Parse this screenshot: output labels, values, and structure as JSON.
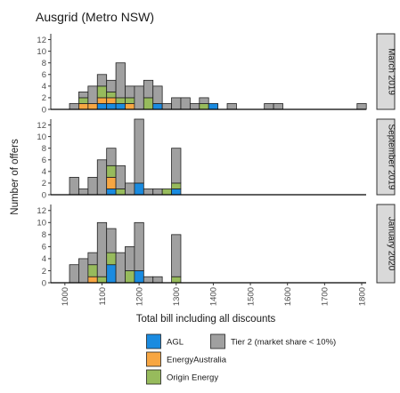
{
  "chart_data": {
    "type": "bar",
    "stacked": true,
    "title": "Ausgrid (Metro NSW)",
    "xlabel": "Total bill including all discounts",
    "ylabel": "Number of offers",
    "bin_width": 25,
    "xlim": [
      962,
      1812
    ],
    "ylim": [
      0,
      13
    ],
    "x_ticks": [
      1000,
      1100,
      1200,
      1300,
      1400,
      1500,
      1600,
      1700,
      1800
    ],
    "y_ticks": [
      0,
      2,
      4,
      6,
      8,
      10,
      12
    ],
    "series_names": [
      "AGL",
      "EnergyAustralia",
      "Origin Energy",
      "Tier 2 (market share < 10%)"
    ],
    "colors": {
      "AGL": "#1a8be0",
      "EnergyAustralia": "#f7a642",
      "Origin Energy": "#97bb5c",
      "Tier 2 (market share < 10%)": "#a0a0a0"
    },
    "legend": {
      "position": "bottom"
    },
    "panels": [
      {
        "label": "March 2019",
        "bins": [
          {
            "x": 1025,
            "AGL": 0,
            "EnergyAustralia": 0,
            "Origin Energy": 0,
            "Tier 2 (market share < 10%)": 1
          },
          {
            "x": 1050,
            "AGL": 0,
            "EnergyAustralia": 1,
            "Origin Energy": 1,
            "Tier 2 (market share < 10%)": 1
          },
          {
            "x": 1075,
            "AGL": 0,
            "EnergyAustralia": 1,
            "Origin Energy": 0,
            "Tier 2 (market share < 10%)": 3
          },
          {
            "x": 1100,
            "AGL": 1,
            "EnergyAustralia": 1,
            "Origin Energy": 2,
            "Tier 2 (market share < 10%)": 2
          },
          {
            "x": 1125,
            "AGL": 1,
            "EnergyAustralia": 1,
            "Origin Energy": 1,
            "Tier 2 (market share < 10%)": 2
          },
          {
            "x": 1150,
            "AGL": 1,
            "EnergyAustralia": 0,
            "Origin Energy": 1,
            "Tier 2 (market share < 10%)": 6
          },
          {
            "x": 1175,
            "AGL": 0,
            "EnergyAustralia": 1,
            "Origin Energy": 1,
            "Tier 2 (market share < 10%)": 2
          },
          {
            "x": 1200,
            "AGL": 0,
            "EnergyAustralia": 0,
            "Origin Energy": 0,
            "Tier 2 (market share < 10%)": 4
          },
          {
            "x": 1225,
            "AGL": 0,
            "EnergyAustralia": 0,
            "Origin Energy": 2,
            "Tier 2 (market share < 10%)": 3
          },
          {
            "x": 1250,
            "AGL": 1,
            "EnergyAustralia": 0,
            "Origin Energy": 0,
            "Tier 2 (market share < 10%)": 3
          },
          {
            "x": 1275,
            "AGL": 0,
            "EnergyAustralia": 0,
            "Origin Energy": 0,
            "Tier 2 (market share < 10%)": 1
          },
          {
            "x": 1300,
            "AGL": 0,
            "EnergyAustralia": 0,
            "Origin Energy": 0,
            "Tier 2 (market share < 10%)": 2
          },
          {
            "x": 1325,
            "AGL": 0,
            "EnergyAustralia": 0,
            "Origin Energy": 0,
            "Tier 2 (market share < 10%)": 2
          },
          {
            "x": 1350,
            "AGL": 0,
            "EnergyAustralia": 0,
            "Origin Energy": 0,
            "Tier 2 (market share < 10%)": 1
          },
          {
            "x": 1375,
            "AGL": 0,
            "EnergyAustralia": 0,
            "Origin Energy": 1,
            "Tier 2 (market share < 10%)": 1
          },
          {
            "x": 1400,
            "AGL": 1,
            "EnergyAustralia": 0,
            "Origin Energy": 0,
            "Tier 2 (market share < 10%)": 0
          },
          {
            "x": 1450,
            "AGL": 0,
            "EnergyAustralia": 0,
            "Origin Energy": 0,
            "Tier 2 (market share < 10%)": 1
          },
          {
            "x": 1550,
            "AGL": 0,
            "EnergyAustralia": 0,
            "Origin Energy": 0,
            "Tier 2 (market share < 10%)": 1
          },
          {
            "x": 1575,
            "AGL": 0,
            "EnergyAustralia": 0,
            "Origin Energy": 0,
            "Tier 2 (market share < 10%)": 1
          },
          {
            "x": 1800,
            "AGL": 0,
            "EnergyAustralia": 0,
            "Origin Energy": 0,
            "Tier 2 (market share < 10%)": 1
          }
        ]
      },
      {
        "label": "September 2019",
        "bins": [
          {
            "x": 1025,
            "AGL": 0,
            "EnergyAustralia": 0,
            "Origin Energy": 0,
            "Tier 2 (market share < 10%)": 3
          },
          {
            "x": 1050,
            "AGL": 0,
            "EnergyAustralia": 0,
            "Origin Energy": 0,
            "Tier 2 (market share < 10%)": 1
          },
          {
            "x": 1075,
            "AGL": 0,
            "EnergyAustralia": 0,
            "Origin Energy": 0,
            "Tier 2 (market share < 10%)": 3
          },
          {
            "x": 1100,
            "AGL": 0,
            "EnergyAustralia": 0,
            "Origin Energy": 0,
            "Tier 2 (market share < 10%)": 6
          },
          {
            "x": 1125,
            "AGL": 1,
            "EnergyAustralia": 2,
            "Origin Energy": 2,
            "Tier 2 (market share < 10%)": 3
          },
          {
            "x": 1150,
            "AGL": 0,
            "EnergyAustralia": 0,
            "Origin Energy": 1,
            "Tier 2 (market share < 10%)": 4
          },
          {
            "x": 1175,
            "AGL": 0,
            "EnergyAustralia": 0,
            "Origin Energy": 0,
            "Tier 2 (market share < 10%)": 2
          },
          {
            "x": 1200,
            "AGL": 2,
            "EnergyAustralia": 0,
            "Origin Energy": 0,
            "Tier 2 (market share < 10%)": 11
          },
          {
            "x": 1225,
            "AGL": 0,
            "EnergyAustralia": 0,
            "Origin Energy": 0,
            "Tier 2 (market share < 10%)": 1
          },
          {
            "x": 1250,
            "AGL": 0,
            "EnergyAustralia": 0,
            "Origin Energy": 0,
            "Tier 2 (market share < 10%)": 1
          },
          {
            "x": 1275,
            "AGL": 0,
            "EnergyAustralia": 0,
            "Origin Energy": 1,
            "Tier 2 (market share < 10%)": 0
          },
          {
            "x": 1300,
            "AGL": 1,
            "EnergyAustralia": 0,
            "Origin Energy": 1,
            "Tier 2 (market share < 10%)": 6
          }
        ]
      },
      {
        "label": "January 2020",
        "bins": [
          {
            "x": 1025,
            "AGL": 0,
            "EnergyAustralia": 0,
            "Origin Energy": 0,
            "Tier 2 (market share < 10%)": 3
          },
          {
            "x": 1050,
            "AGL": 0,
            "EnergyAustralia": 0,
            "Origin Energy": 0,
            "Tier 2 (market share < 10%)": 4
          },
          {
            "x": 1075,
            "AGL": 0,
            "EnergyAustralia": 1,
            "Origin Energy": 2,
            "Tier 2 (market share < 10%)": 2
          },
          {
            "x": 1100,
            "AGL": 0,
            "EnergyAustralia": 0,
            "Origin Energy": 1,
            "Tier 2 (market share < 10%)": 9
          },
          {
            "x": 1125,
            "AGL": 3,
            "EnergyAustralia": 0,
            "Origin Energy": 2,
            "Tier 2 (market share < 10%)": 4
          },
          {
            "x": 1150,
            "AGL": 0,
            "EnergyAustralia": 0,
            "Origin Energy": 0,
            "Tier 2 (market share < 10%)": 5
          },
          {
            "x": 1175,
            "AGL": 0,
            "EnergyAustralia": 0,
            "Origin Energy": 2,
            "Tier 2 (market share < 10%)": 4
          },
          {
            "x": 1200,
            "AGL": 2,
            "EnergyAustralia": 0,
            "Origin Energy": 0,
            "Tier 2 (market share < 10%)": 8
          },
          {
            "x": 1225,
            "AGL": 0,
            "EnergyAustralia": 0,
            "Origin Energy": 0,
            "Tier 2 (market share < 10%)": 1
          },
          {
            "x": 1250,
            "AGL": 0,
            "EnergyAustralia": 0,
            "Origin Energy": 0,
            "Tier 2 (market share < 10%)": 1
          },
          {
            "x": 1300,
            "AGL": 0,
            "EnergyAustralia": 0,
            "Origin Energy": 1,
            "Tier 2 (market share < 10%)": 7
          }
        ]
      }
    ]
  }
}
